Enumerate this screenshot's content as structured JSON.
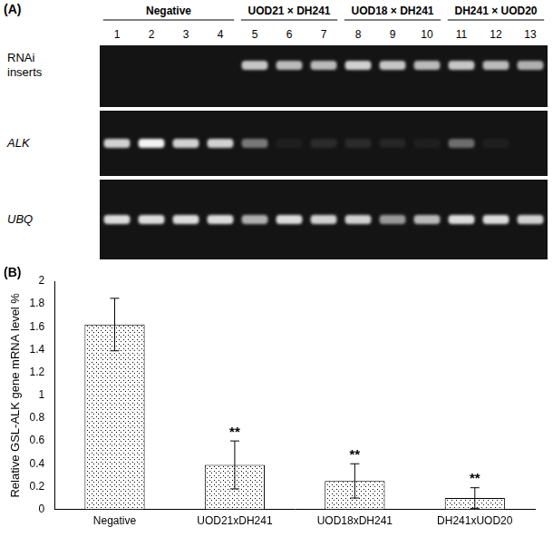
{
  "panel_a": {
    "label": "(A)",
    "lanes": [
      "1",
      "2",
      "3",
      "4",
      "5",
      "6",
      "7",
      "8",
      "9",
      "10",
      "11",
      "12",
      "13"
    ],
    "groups": [
      {
        "label": "Negative",
        "first_lane": "1",
        "last_lane": "4"
      },
      {
        "label": "UOD21 × DH241",
        "first_lane": "5",
        "last_lane": "7"
      },
      {
        "label": "UOD18 × DH241",
        "first_lane": "8",
        "last_lane": "10"
      },
      {
        "label": "DH241 × UOD20",
        "first_lane": "11",
        "last_lane": "13"
      }
    ],
    "rows": [
      {
        "label": "RNAi inserts",
        "style": "normal",
        "band_intensity": [
          0,
          0,
          0,
          0,
          0.8,
          0.75,
          0.75,
          0.85,
          0.8,
          0.75,
          0.8,
          0.75,
          0.7
        ]
      },
      {
        "label": "ALK",
        "style": "italic",
        "band_intensity": [
          0.85,
          1,
          0.85,
          0.85,
          0.45,
          0.05,
          0.1,
          0.1,
          0.08,
          0.05,
          0.4,
          0.05,
          0
        ]
      },
      {
        "label": "UBQ",
        "style": "italic",
        "band_intensity": [
          0.9,
          0.9,
          0.9,
          0.9,
          0.7,
          0.9,
          0.85,
          0.85,
          0.6,
          0.75,
          0.9,
          0.9,
          0.85
        ]
      }
    ]
  },
  "chart_data": {
    "panel_label": "(B)",
    "type": "bar",
    "y_label": "Relative GSL-ALK gene mRNA level %",
    "categories": [
      "Negative",
      "UOD21xDH241",
      "UOD18xDH241",
      "DH241xUOD20"
    ],
    "values": [
      1.62,
      0.39,
      0.25,
      0.1
    ],
    "errors": [
      0.23,
      0.21,
      0.15,
      0.09
    ],
    "annotations": [
      {
        "category": "UOD21xDH241",
        "text": "**"
      },
      {
        "category": "UOD18xDH241",
        "text": "**"
      },
      {
        "category": "DH241xUOD20",
        "text": "**"
      }
    ],
    "color": "#000000",
    "ylim": [
      0,
      2
    ],
    "yticks": [
      0,
      0.2,
      0.4,
      0.6,
      0.8,
      1,
      1.2,
      1.4,
      1.6,
      1.8,
      2
    ],
    "grid": false
  }
}
